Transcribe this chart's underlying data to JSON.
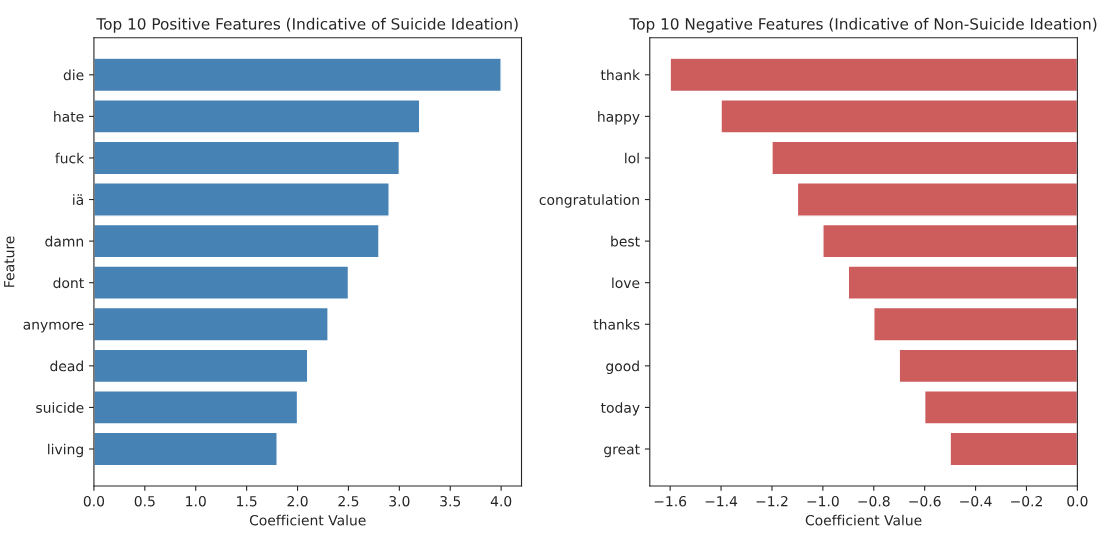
{
  "chart_data": [
    {
      "type": "bar",
      "orientation": "horizontal",
      "title": "Top 10 Positive Features (Indicative of Suicide Ideation)",
      "xlabel": "Coefficient Value",
      "ylabel": "Feature",
      "categories": [
        "die",
        "hate",
        "fuck",
        "iä",
        "damn",
        "dont",
        "anymore",
        "dead",
        "suicide",
        "living"
      ],
      "series": [
        {
          "color": "#4682b4",
          "values": [
            4.0,
            3.2,
            3.0,
            2.9,
            2.8,
            2.5,
            2.3,
            2.1,
            2.0,
            1.8
          ]
        }
      ],
      "xlim": [
        0,
        4.2
      ],
      "xticks": [
        {
          "value": 0,
          "label": "0.0"
        },
        0.5,
        {
          "value": 1,
          "label": "1.0"
        },
        1.5,
        {
          "value": 2,
          "label": "2.0"
        },
        2.5,
        {
          "value": 3,
          "label": "3.0"
        },
        3.5,
        {
          "value": 4,
          "label": "4.0"
        }
      ],
      "grid": false
    },
    {
      "type": "bar",
      "orientation": "horizontal",
      "title": "Top 10 Negative Features (Indicative of Non-Suicide Ideation)",
      "xlabel": "Coefficient Value",
      "categories": [
        "thank",
        "happy",
        "lol",
        "congratulation",
        "best",
        "love",
        "thanks",
        "good",
        "today",
        "great"
      ],
      "series": [
        {
          "color": "#cd5c5c",
          "values": [
            -1.6,
            -1.4,
            -1.2,
            -1.1,
            -1.0,
            -0.9,
            -0.8,
            -0.7,
            -0.6,
            -0.5
          ]
        }
      ],
      "xlim": [
        -1.68,
        0
      ],
      "xticks": [
        {
          "value": -1.6,
          "label": "−1.6"
        },
        {
          "value": -1.4,
          "label": "−1.4"
        },
        {
          "value": -1.2,
          "label": "−1.2"
        },
        {
          "value": -1.0,
          "label": "−1.0"
        },
        {
          "value": -0.8,
          "label": "−0.8"
        },
        {
          "value": -0.6,
          "label": "−0.6"
        },
        {
          "value": -0.4,
          "label": "−0.4"
        },
        {
          "value": -0.2,
          "label": "−0.2"
        },
        {
          "value": 0,
          "label": "0.0"
        }
      ],
      "grid": false
    }
  ]
}
